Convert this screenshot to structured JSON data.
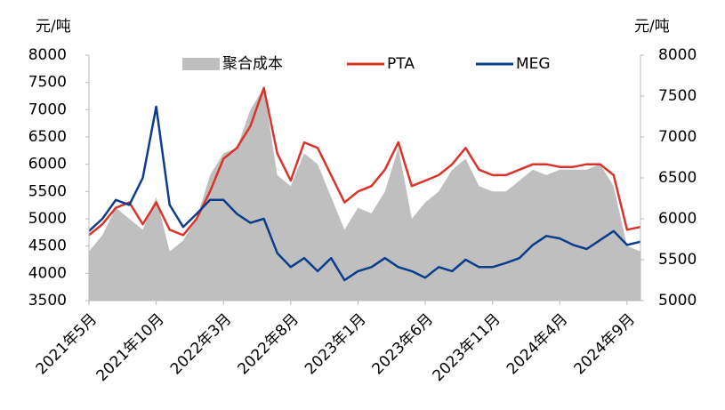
{
  "chart_data": {
    "type": "line",
    "y_label": "元/吨",
    "y2_label": "元/吨",
    "categories": [
      "2021年5月",
      null,
      null,
      null,
      null,
      "2021年10月",
      null,
      null,
      null,
      null,
      "2022年3月",
      null,
      null,
      null,
      null,
      "2022年8月",
      null,
      null,
      null,
      null,
      "2023年1月",
      null,
      null,
      null,
      null,
      "2023年6月",
      null,
      null,
      null,
      null,
      "2023年11月",
      null,
      null,
      null,
      null,
      "2024年4月",
      null,
      null,
      null,
      null,
      "2024年9月",
      null
    ],
    "series": [
      {
        "name": "聚合成本",
        "type": "area",
        "color": "#bfbfbf",
        "values": [
          4400,
          4700,
          5200,
          5000,
          4800,
          5400,
          4400,
          4600,
          5000,
          5800,
          6200,
          6300,
          7000,
          7400,
          5800,
          5600,
          6200,
          6000,
          5400,
          4800,
          5200,
          5100,
          5500,
          6300,
          5000,
          5300,
          5500,
          5900,
          6100,
          5600,
          5500,
          5500,
          5700,
          5900,
          5800,
          5900,
          5900,
          5900,
          6000,
          5600,
          4500,
          4400
        ]
      },
      {
        "name": "PTA",
        "type": "line",
        "color": "#d9332a",
        "values": [
          4700,
          4900,
          5200,
          5300,
          4900,
          5300,
          4800,
          4700,
          5000,
          5500,
          6100,
          6300,
          6700,
          7400,
          6200,
          5700,
          6400,
          6300,
          5800,
          5300,
          5500,
          5600,
          5900,
          6400,
          5600,
          5700,
          5800,
          6000,
          6300,
          5900,
          5800,
          5800,
          5900,
          6000,
          6000,
          5950,
          5950,
          6000,
          6000,
          5800,
          4800,
          4850
        ]
      },
      {
        "name": "MEG",
        "type": "line",
        "axis": "y2",
        "color": "#0b3d8c",
        "values": [
          5850,
          6000,
          6230,
          6170,
          6500,
          7370,
          6170,
          5900,
          6060,
          6230,
          6230,
          6060,
          5950,
          6000,
          5580,
          5410,
          5520,
          5360,
          5520,
          5250,
          5360,
          5410,
          5520,
          5410,
          5360,
          5280,
          5410,
          5360,
          5500,
          5410,
          5410,
          5460,
          5520,
          5680,
          5790,
          5760,
          5680,
          5630,
          5740,
          5850,
          5680,
          5720
        ]
      }
    ],
    "ylim": [
      3500,
      8000
    ],
    "yticks": [
      3500,
      4000,
      4500,
      5000,
      5500,
      6000,
      6500,
      7000,
      7500,
      8000
    ],
    "y2lim": [
      5000,
      8000
    ],
    "y2ticks": [
      5000,
      5500,
      6000,
      6500,
      7000,
      7500,
      8000
    ],
    "legend": "top"
  }
}
